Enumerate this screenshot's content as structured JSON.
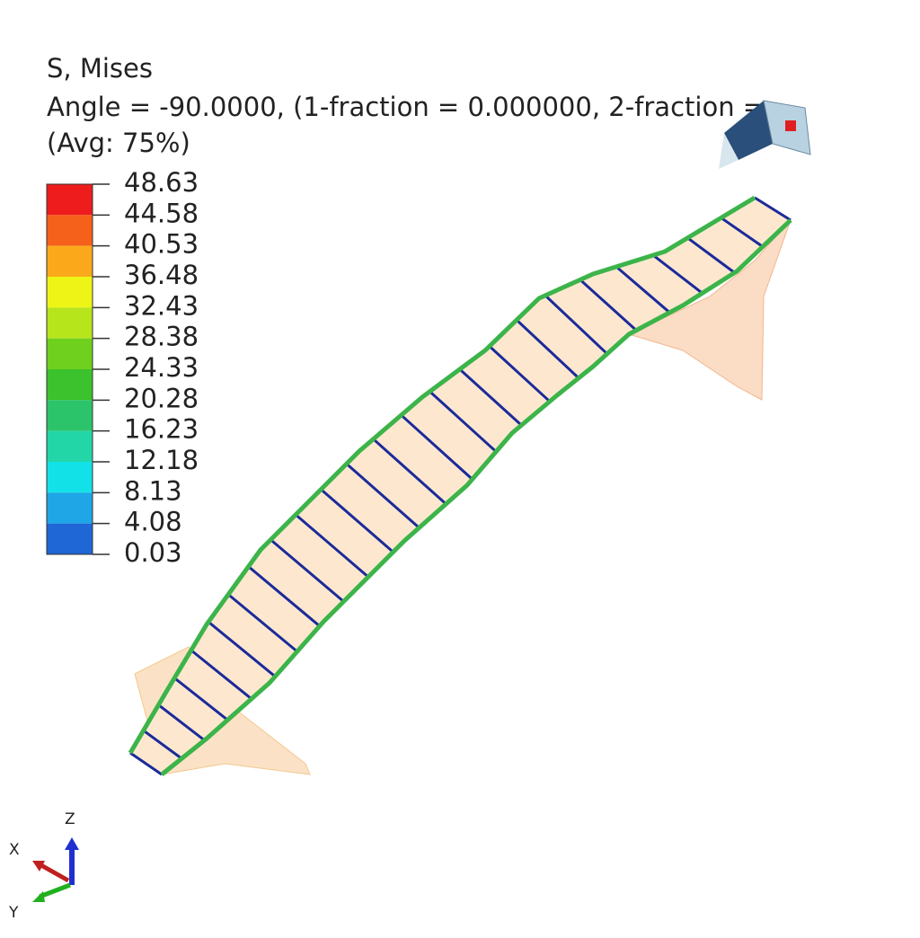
{
  "header": {
    "variable": "S, Mises",
    "frame": "Angle = -90.0000, (1-fraction = 0.000000, 2-fraction =",
    "averaging": "(Avg: 75%)"
  },
  "legend": {
    "labels": [
      "48.63",
      "44.58",
      "40.53",
      "36.48",
      "32.43",
      "28.38",
      "24.33",
      "20.28",
      "16.23",
      "12.18",
      "8.13",
      "4.08",
      "0.03"
    ],
    "colors": [
      "#ee1c1c",
      "#f5601a",
      "#fba91a",
      "#eef516",
      "#b7e51c",
      "#6fd01e",
      "#3cc22c",
      "#2cc46a",
      "#22d6a8",
      "#12e2e8",
      "#1ea6e6",
      "#1f66d6",
      "#1c2ed6"
    ]
  },
  "triad": {
    "x": "X",
    "y": "Y",
    "z": "Z"
  }
}
